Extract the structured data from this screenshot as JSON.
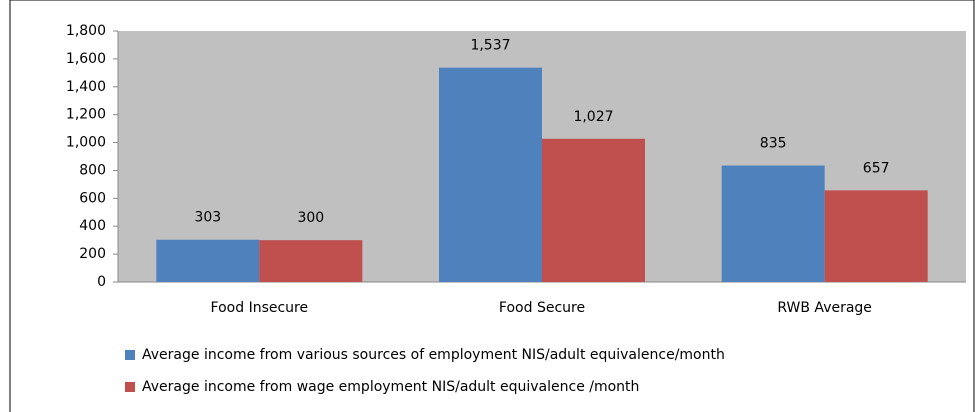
{
  "chart_data": {
    "type": "bar",
    "categories": [
      "Food Insecure",
      "Food Secure",
      "RWB Average"
    ],
    "series": [
      {
        "name": "Average income from various sources of employment NIS/adult equivalence/month",
        "color": "#4f81bd",
        "values": [
          303,
          1537,
          835
        ],
        "value_labels": [
          "303",
          "1,537",
          "835"
        ]
      },
      {
        "name": "Average income from wage employment NIS/adult equivalence /month",
        "color": "#c0504d",
        "values": [
          300,
          1027,
          657
        ],
        "value_labels": [
          "300",
          "1,027",
          "657"
        ]
      }
    ],
    "ylim": [
      0,
      1800
    ],
    "yticks": [
      0,
      200,
      400,
      600,
      800,
      {
        "value": 1000,
        "label": "1,000"
      },
      {
        "value": 1200,
        "label": "1,200"
      },
      {
        "value": 1400,
        "label": "1,400"
      },
      {
        "value": 1600,
        "label": "1,600"
      },
      {
        "value": 1800,
        "label": "1,800"
      }
    ],
    "grid": false,
    "plot_background": "#c0c0c0",
    "legend": "bottom"
  }
}
